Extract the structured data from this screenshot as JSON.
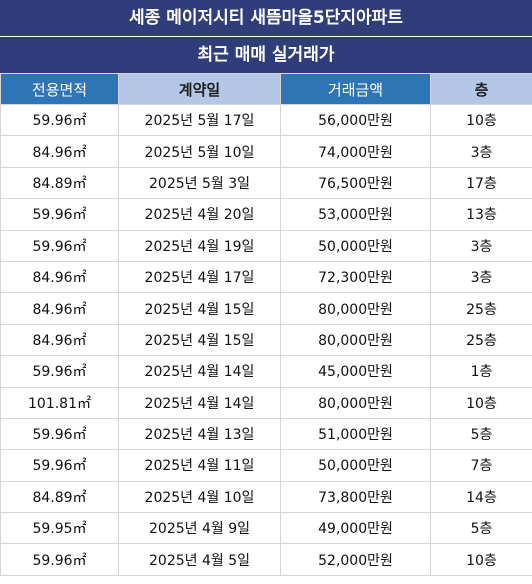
{
  "header": {
    "title": "세종 메이저시티 새뜸마을5단지아파트",
    "subtitle": "최근 매매 실거래가"
  },
  "table": {
    "columns": [
      "전용면적",
      "계약일",
      "거래금액",
      "층"
    ],
    "rows": [
      [
        "59.96㎡",
        "2025년 5월 17일",
        "56,000만원",
        "10층"
      ],
      [
        "84.96㎡",
        "2025년 5월 10일",
        "74,000만원",
        "3층"
      ],
      [
        "84.89㎡",
        "2025년 5월 3일",
        "76,500만원",
        "17층"
      ],
      [
        "59.96㎡",
        "2025년 4월 20일",
        "53,000만원",
        "13층"
      ],
      [
        "59.96㎡",
        "2025년 4월 19일",
        "50,000만원",
        "3층"
      ],
      [
        "84.96㎡",
        "2025년 4월 17일",
        "72,300만원",
        "3층"
      ],
      [
        "84.96㎡",
        "2025년 4월 15일",
        "80,000만원",
        "25층"
      ],
      [
        "84.96㎡",
        "2025년 4월 15일",
        "80,000만원",
        "25층"
      ],
      [
        "59.96㎡",
        "2025년 4월 14일",
        "45,000만원",
        "1층"
      ],
      [
        "101.81㎡",
        "2025년 4월 14일",
        "80,000만원",
        "10층"
      ],
      [
        "59.96㎡",
        "2025년 4월 13일",
        "51,000만원",
        "5층"
      ],
      [
        "59.96㎡",
        "2025년 4월 11일",
        "50,000만원",
        "7층"
      ],
      [
        "84.89㎡",
        "2025년 4월 10일",
        "73,800만원",
        "14층"
      ],
      [
        "59.95㎡",
        "2025년 4월 9일",
        "49,000만원",
        "5층"
      ],
      [
        "59.96㎡",
        "2025년 4월 5일",
        "52,000만원",
        "10층"
      ]
    ]
  },
  "colors": {
    "title_bg": "#2f3e7a",
    "header_dark": "#2e75b6",
    "header_light": "#b4c7e7"
  }
}
